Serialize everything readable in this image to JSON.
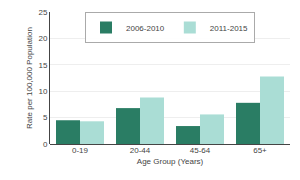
{
  "chart_data": {
    "type": "bar",
    "categories": [
      "0-19",
      "20-44",
      "45-64",
      "65+"
    ],
    "series": [
      {
        "name": "2006-2010",
        "color": "#2a7d64",
        "values": [
          4.5,
          6.8,
          3.4,
          7.8
        ]
      },
      {
        "name": "2011-2015",
        "color": "#aaddd5",
        "values": [
          4.3,
          8.8,
          5.6,
          12.8
        ]
      }
    ],
    "xlabel": "Age Group (Years)",
    "ylabel": "Rate per 100,000 Population",
    "ylim": [
      0,
      25
    ],
    "yticks": [
      0,
      5,
      10,
      15,
      20,
      25
    ],
    "grid": "y",
    "legend": "upper center"
  }
}
